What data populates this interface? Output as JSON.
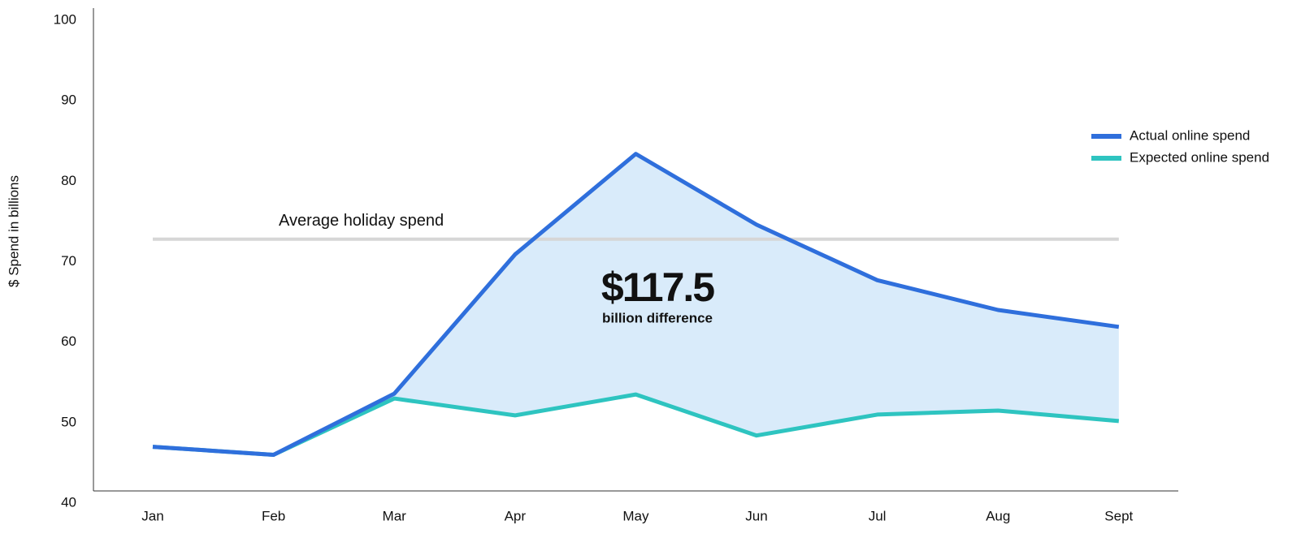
{
  "chart_data": {
    "type": "line",
    "y_label": "$ Spend in billions",
    "categories": [
      "Jan",
      "Feb",
      "Mar",
      "Apr",
      "May",
      "Jun",
      "Jul",
      "Aug",
      "Sept"
    ],
    "series": [
      {
        "name": "Actual online spend",
        "color": "#2f6fdc",
        "values": [
          47,
          46,
          53.6,
          70.9,
          83.4,
          74.6,
          67.7,
          64,
          61.9
        ]
      },
      {
        "name": "Expected online spend",
        "color": "#2ec4c0",
        "values": [
          47,
          46,
          53,
          50.9,
          53.5,
          48.4,
          51,
          51.5,
          50.2
        ]
      }
    ],
    "fill_color": "#d9ebfa",
    "reference_line": {
      "label": "Average holiday spend",
      "value": 72.8,
      "color": "#d6d6d6"
    },
    "annotation": {
      "value": "$117.5",
      "text": "billion difference"
    },
    "ylim": [
      40,
      100
    ],
    "yticks": [
      40,
      50,
      60,
      70,
      80,
      90,
      100
    ],
    "legend": "top-right"
  }
}
